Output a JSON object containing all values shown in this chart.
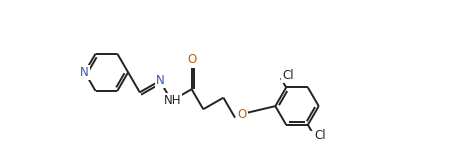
{
  "bg_color": "#ffffff",
  "line_color": "#222222",
  "N_color": "#3355bb",
  "O_color": "#bb6600",
  "Cl_color": "#222222",
  "lw": 1.4,
  "figsize": [
    4.67,
    1.47
  ],
  "dpi": 100,
  "xlim": [
    0,
    467
  ],
  "ylim": [
    0,
    147
  ]
}
